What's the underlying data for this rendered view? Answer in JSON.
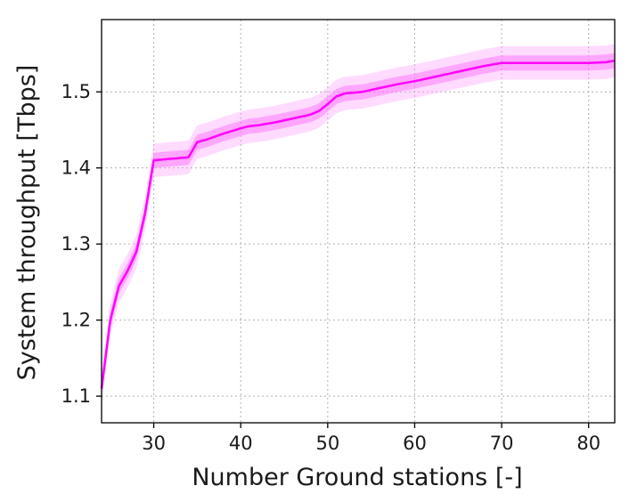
{
  "chart_data": {
    "type": "line",
    "title": "",
    "xlabel": "Number Ground stations [-]",
    "ylabel": "System throughput [Tbps]",
    "xlim": [
      24,
      83
    ],
    "ylim": [
      1.065,
      1.595
    ],
    "xticks": [
      30,
      40,
      50,
      60,
      70,
      80
    ],
    "yticks": [
      1.1,
      1.2,
      1.3,
      1.4,
      1.5
    ],
    "xtick_labels": [
      "30",
      "40",
      "50",
      "60",
      "70",
      "80"
    ],
    "ytick_labels": [
      "1.1",
      "1.2",
      "1.3",
      "1.4",
      "1.5"
    ],
    "grid": true,
    "colors": {
      "line": "#ff00ff",
      "band_inner": "#ff66ff",
      "band_outer": "#ff99ff"
    },
    "series": [
      {
        "x": [
          24,
          25,
          26,
          27,
          28,
          29,
          30,
          31,
          32,
          33,
          34,
          35,
          36,
          38,
          40,
          41,
          42,
          44,
          46,
          48,
          49,
          50,
          51,
          52,
          54,
          56,
          58,
          60,
          62,
          64,
          66,
          68,
          70,
          72,
          74,
          76,
          78,
          80,
          82,
          83
        ],
        "y": [
          1.11,
          1.2,
          1.245,
          1.265,
          1.29,
          1.34,
          1.41,
          1.411,
          1.412,
          1.413,
          1.414,
          1.434,
          1.437,
          1.445,
          1.452,
          1.455,
          1.456,
          1.46,
          1.465,
          1.47,
          1.475,
          1.484,
          1.494,
          1.498,
          1.5,
          1.505,
          1.51,
          1.514,
          1.519,
          1.524,
          1.529,
          1.534,
          1.538,
          1.538,
          1.538,
          1.538,
          1.538,
          1.538,
          1.539,
          1.541
        ],
        "inner_band": 0.01,
        "outer_band": 0.022
      }
    ]
  }
}
